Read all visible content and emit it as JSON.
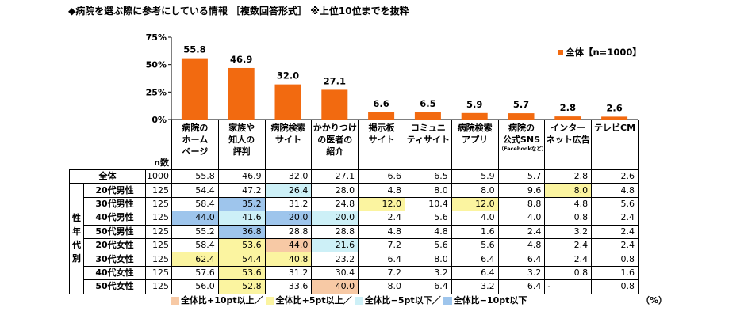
{
  "title": "◆病院を選ぶ際に参考にしている情報 ［複数回答形式］ ※上位10位までを抜粋",
  "legend_label": "全体【n=1000】",
  "chart_data": {
    "type": "bar",
    "categories": [
      "病院のホームページ",
      "家族や知人の評判",
      "病院検索サイト",
      "かかりつけの医者の紹介",
      "掲示板サイト",
      "コミュニティサイト",
      "病院検索アプリ",
      "病院の公式SNS",
      "インターネット広告",
      "テレビCM"
    ],
    "series": [
      {
        "name": "全体【n=1000】",
        "values": [
          55.8,
          46.9,
          32.0,
          27.1,
          6.6,
          6.5,
          5.9,
          5.7,
          2.8,
          2.6
        ],
        "labels": [
          "55.8",
          "46.9",
          "32.0",
          "27.1",
          "6.6",
          "6.5",
          "5.9",
          "5.7",
          "2.8",
          "2.6"
        ]
      }
    ],
    "ylim": [
      0,
      75
    ],
    "yticks": [
      "0%",
      "25%",
      "50%",
      "75%"
    ],
    "bar_color": "#f26a10"
  },
  "table": {
    "n_label": "n数",
    "headers": [
      {
        "lines": [
          "病院の",
          "ホーム",
          "ページ"
        ]
      },
      {
        "lines": [
          "家族や",
          "知人の",
          "評判"
        ]
      },
      {
        "lines": [
          "病院検索",
          "サイト"
        ]
      },
      {
        "lines": [
          "かかりつけ",
          "の医者の",
          "紹介"
        ]
      },
      {
        "lines": [
          "掲示板",
          "サイト"
        ]
      },
      {
        "lines": [
          "コミュニ",
          "ティサイト"
        ]
      },
      {
        "lines": [
          "病院検索",
          "アプリ"
        ]
      },
      {
        "lines": [
          "病院の",
          "公式SNS"
        ],
        "sub": "（Facebookなど）"
      },
      {
        "lines": [
          "インター",
          "ネット広告"
        ]
      },
      {
        "lines": [
          "テレビCM"
        ]
      }
    ],
    "total": {
      "label": "全体",
      "n": "1000",
      "values": [
        "55.8",
        "46.9",
        "32.0",
        "27.1",
        "6.6",
        "6.5",
        "5.9",
        "5.7",
        "2.8",
        "2.6"
      ]
    },
    "group_label": [
      "性",
      "年",
      "代",
      "別"
    ],
    "rows": [
      {
        "label": "20代男性",
        "n": "125",
        "values": [
          "54.4",
          "47.2",
          "26.4",
          "28.0",
          "4.8",
          "8.0",
          "8.0",
          "9.6",
          "8.0",
          "4.8"
        ],
        "hl": [
          "",
          "",
          "lo5",
          "",
          "",
          "",
          "",
          "",
          "hi5",
          ""
        ]
      },
      {
        "label": "30代男性",
        "n": "125",
        "values": [
          "58.4",
          "35.2",
          "31.2",
          "24.8",
          "12.0",
          "10.4",
          "12.0",
          "8.8",
          "4.8",
          "5.6"
        ],
        "hl": [
          "",
          "lo10",
          "",
          "",
          "hi5",
          "",
          "hi5",
          "",
          "",
          ""
        ]
      },
      {
        "label": "40代男性",
        "n": "125",
        "values": [
          "44.0",
          "41.6",
          "20.0",
          "20.0",
          "2.4",
          "5.6",
          "4.0",
          "4.0",
          "0.8",
          "2.4"
        ],
        "hl": [
          "lo10",
          "lo5",
          "lo10",
          "lo5",
          "",
          "",
          "",
          "",
          "",
          ""
        ]
      },
      {
        "label": "50代男性",
        "n": "125",
        "values": [
          "55.2",
          "36.8",
          "28.8",
          "28.8",
          "4.8",
          "4.8",
          "1.6",
          "2.4",
          "3.2",
          "2.4"
        ],
        "hl": [
          "",
          "lo10",
          "",
          "",
          "",
          "",
          "",
          "",
          "",
          ""
        ]
      },
      {
        "label": "20代女性",
        "n": "125",
        "values": [
          "58.4",
          "53.6",
          "44.0",
          "21.6",
          "7.2",
          "5.6",
          "5.6",
          "4.8",
          "2.4",
          "2.4"
        ],
        "hl": [
          "",
          "hi5",
          "hi10",
          "lo5",
          "",
          "",
          "",
          "",
          "",
          ""
        ]
      },
      {
        "label": "30代女性",
        "n": "125",
        "values": [
          "62.4",
          "54.4",
          "40.8",
          "23.2",
          "6.4",
          "8.0",
          "6.4",
          "6.4",
          "2.4",
          "0.8"
        ],
        "hl": [
          "hi5",
          "hi5",
          "hi5",
          "",
          "",
          "",
          "",
          "",
          "",
          ""
        ]
      },
      {
        "label": "40代女性",
        "n": "125",
        "values": [
          "57.6",
          "53.6",
          "31.2",
          "30.4",
          "7.2",
          "3.2",
          "6.4",
          "3.2",
          "0.8",
          "1.6"
        ],
        "hl": [
          "",
          "hi5",
          "",
          "",
          "",
          "",
          "",
          "",
          "",
          ""
        ]
      },
      {
        "label": "50代女性",
        "n": "125",
        "values": [
          "56.0",
          "52.8",
          "33.6",
          "40.0",
          "8.0",
          "6.4",
          "3.2",
          "6.4",
          "-",
          "0.8"
        ],
        "hl": [
          "",
          "hi5",
          "",
          "hi10",
          "",
          "",
          "",
          "",
          "",
          ""
        ]
      }
    ]
  },
  "keys": [
    {
      "label": "全体比+10pt以上／",
      "color": "#f7c9a5"
    },
    {
      "label": "全体比+5pt以上／",
      "color": "#fbf4a0"
    },
    {
      "label": "全体比−5pt以下／",
      "color": "#cdf0f7"
    },
    {
      "label": "全体比−10pt以下",
      "color": "#9ec5ec"
    }
  ],
  "unit": "（%）"
}
